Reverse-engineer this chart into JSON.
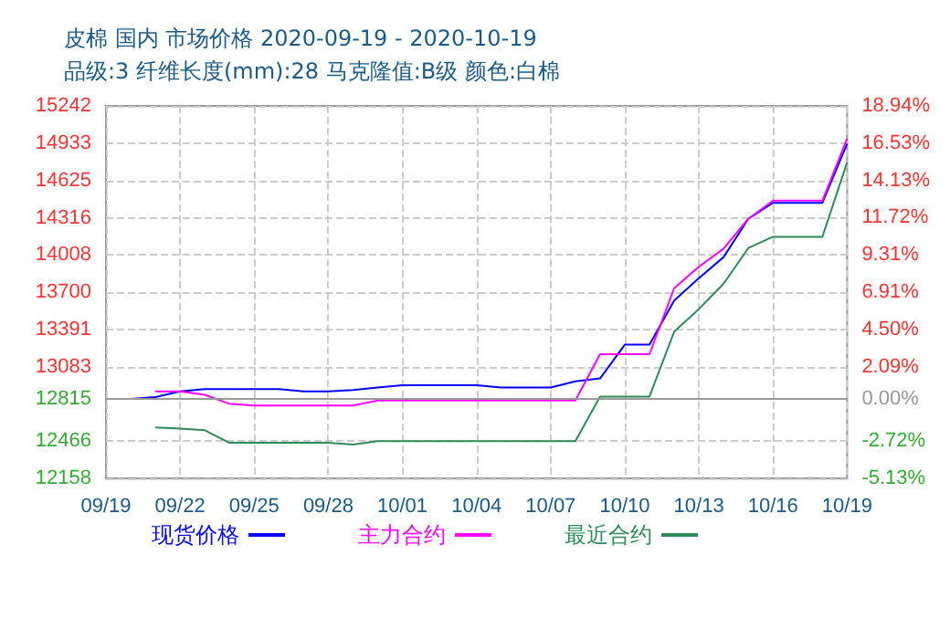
{
  "chart_data": {
    "type": "line",
    "title": "皮棉 国内 市场价格 2020-09-19 - 2020-10-19",
    "subtitle": "品级:3 纤维长度(mm):28 马克隆值:B级 颜色:白棉",
    "x": [
      "2020-09-19",
      "2020-09-20",
      "2020-09-21",
      "2020-09-22",
      "2020-09-23",
      "2020-09-24",
      "2020-09-25",
      "2020-09-26",
      "2020-09-27",
      "2020-09-28",
      "2020-09-29",
      "2020-09-30",
      "2020-10-01",
      "2020-10-02",
      "2020-10-03",
      "2020-10-04",
      "2020-10-05",
      "2020-10-06",
      "2020-10-07",
      "2020-10-08",
      "2020-10-09",
      "2020-10-10",
      "2020-10-11",
      "2020-10-12",
      "2020-10-13",
      "2020-10-14",
      "2020-10-15",
      "2020-10-16",
      "2020-10-17",
      "2020-10-18",
      "2020-10-19"
    ],
    "series": [
      {
        "name": "现货价格",
        "color": "#0000ff",
        "values": [
          12815,
          12815,
          12830,
          12878,
          12897,
          12897,
          12897,
          12897,
          12878,
          12878,
          12890,
          12910,
          12929,
          12929,
          12929,
          12929,
          12910,
          12910,
          12910,
          12961,
          12985,
          13265,
          13265,
          13630,
          13816,
          13990,
          14307,
          14439,
          14439,
          14439,
          14930
        ]
      },
      {
        "name": "主力合约",
        "color": "#ff00ff",
        "values": [
          null,
          null,
          12878,
          12878,
          12850,
          12775,
          12761,
          12761,
          12761,
          12761,
          12761,
          12803,
          12803,
          12803,
          12803,
          12803,
          12803,
          12803,
          12803,
          12803,
          13186,
          13186,
          13186,
          13732,
          13910,
          14060,
          14307,
          14457,
          14457,
          14457,
          14970
        ]
      },
      {
        "name": "最近合约",
        "color": "#2e8b57",
        "values": [
          null,
          null,
          12579,
          12570,
          12556,
          12452,
          12452,
          12452,
          12452,
          12452,
          12438,
          12466,
          12466,
          12466,
          12466,
          12466,
          12466,
          12466,
          12466,
          12466,
          12835,
          12835,
          12835,
          13373,
          13560,
          13770,
          14065,
          14158,
          14158,
          14158,
          14775
        ]
      }
    ],
    "xlim": [
      "2020-09-19",
      "2020-10-19"
    ],
    "xticks": [
      {
        "value": "2020-09-19",
        "label": "09/19"
      },
      {
        "value": "2020-09-22",
        "label": "09/22"
      },
      {
        "value": "2020-09-25",
        "label": "09/25"
      },
      {
        "value": "2020-09-28",
        "label": "09/28"
      },
      {
        "value": "2020-10-01",
        "label": "10/01"
      },
      {
        "value": "2020-10-04",
        "label": "10/04"
      },
      {
        "value": "2020-10-07",
        "label": "10/07"
      },
      {
        "value": "2020-10-10",
        "label": "10/10"
      },
      {
        "value": "2020-10-13",
        "label": "10/13"
      },
      {
        "value": "2020-10-16",
        "label": "10/16"
      },
      {
        "value": "2020-10-19",
        "label": "10/19"
      }
    ],
    "ylim": [
      12158,
      15242
    ],
    "yticks": [
      12158,
      12466,
      12815,
      13083,
      13391,
      13700,
      14008,
      14316,
      14625,
      14933,
      15242
    ],
    "y2lim": [
      -5.13,
      18.94
    ],
    "y2ticks": [
      {
        "value": -5.13,
        "label": "-5.13%"
      },
      {
        "value": -2.72,
        "label": "-2.72%"
      },
      {
        "value": 0,
        "label": "0.00%"
      },
      {
        "value": 2.09,
        "label": "2.09%"
      },
      {
        "value": 4.5,
        "label": "4.50%"
      },
      {
        "value": 6.91,
        "label": "6.91%"
      },
      {
        "value": 9.31,
        "label": "9.31%"
      },
      {
        "value": 11.72,
        "label": "11.72%"
      },
      {
        "value": 14.13,
        "label": "14.13%"
      },
      {
        "value": 16.53,
        "label": "16.53%"
      },
      {
        "value": 18.94,
        "label": "18.94%"
      }
    ],
    "ref_lines": [
      {
        "axis": "y2",
        "value": 0,
        "color": "#999999"
      }
    ],
    "grid": true,
    "legend": "bottom",
    "marker": "none",
    "line_style": "solid"
  }
}
